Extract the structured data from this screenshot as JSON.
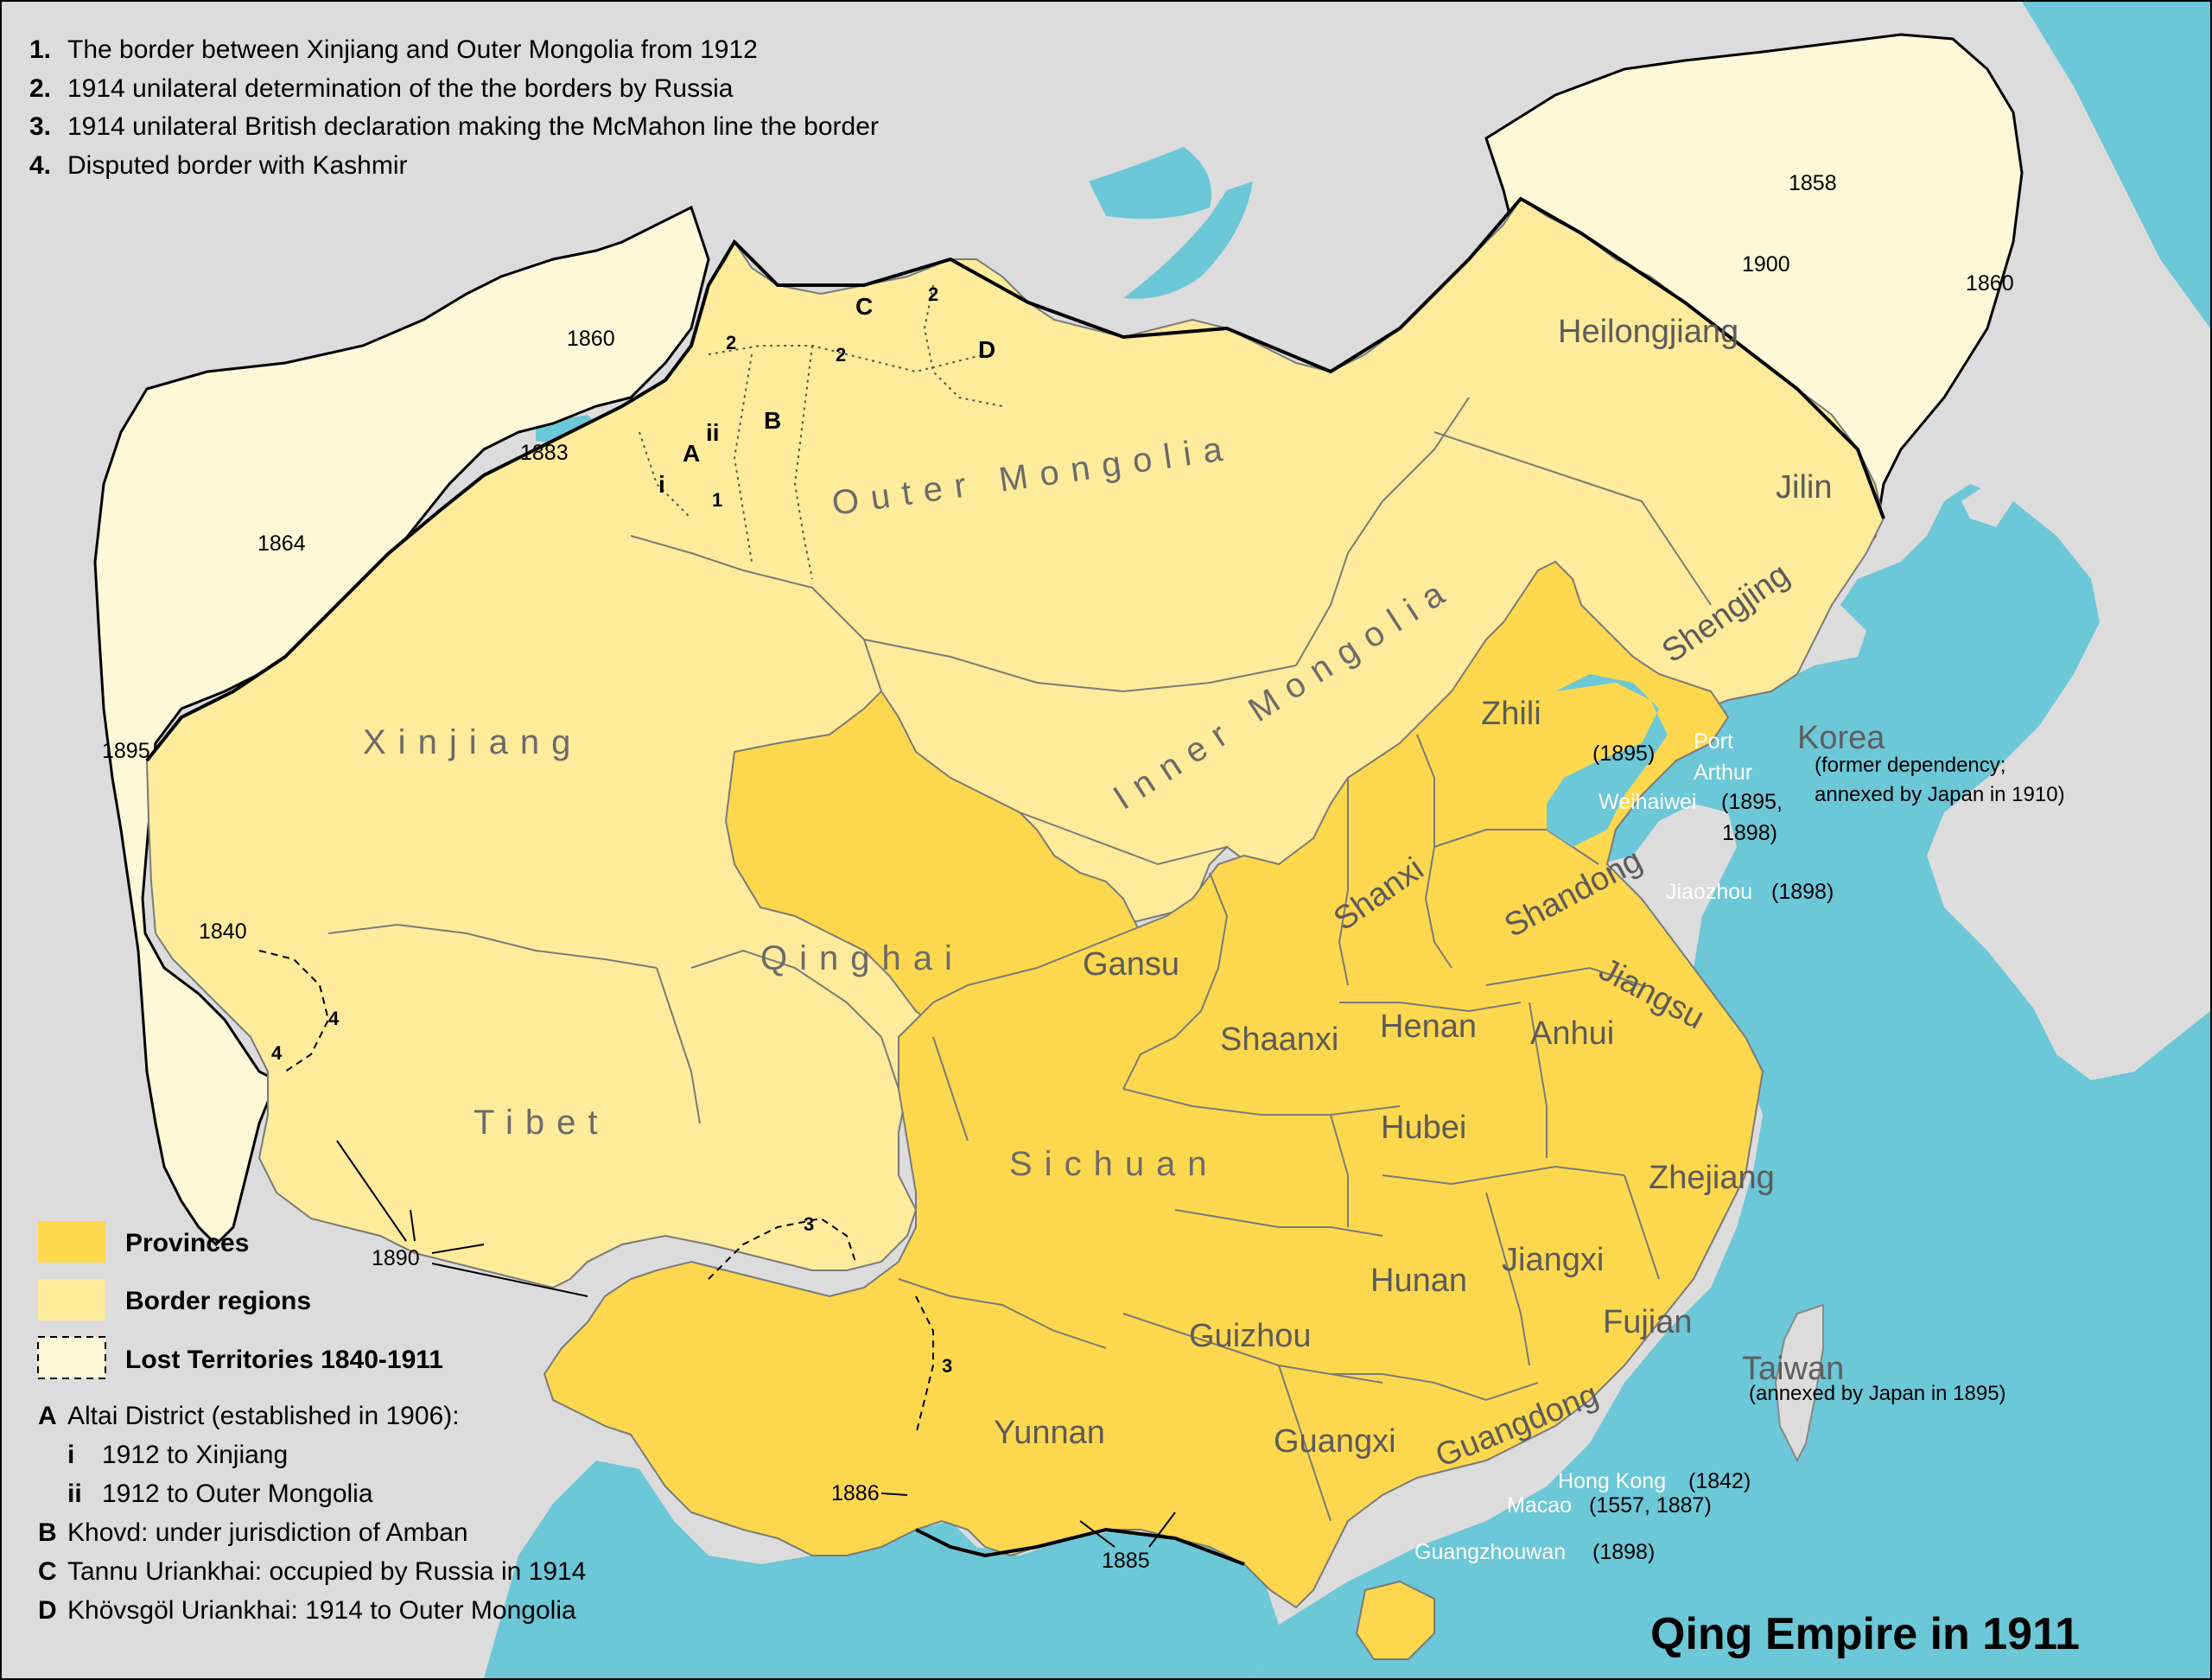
{
  "title": "Qing Empire in 1911",
  "colors": {
    "sea": "#6cc7d7",
    "foreign_land": "#dcdcdc",
    "provinces": "#fdd84e",
    "border_regions": "#feeb9b",
    "lost_territories": "#fef8d8"
  },
  "notes": [
    {
      "num": "1.",
      "text": "The border between Xinjiang and Outer Mongolia from 1912"
    },
    {
      "num": "2.",
      "text": "1914 unilateral determination of the the borders by Russia"
    },
    {
      "num": "3.",
      "text": "1914 unilateral British declaration making the McMahon line the border"
    },
    {
      "num": "4.",
      "text": "Disputed border with Kashmir"
    }
  ],
  "legend": {
    "provinces": "Provinces",
    "border_regions": "Border regions",
    "lost_territories": "Lost Territories 1840-1911"
  },
  "footnotes": [
    {
      "key": "A",
      "text": "Altai District (established in 1906):"
    },
    {
      "key": "i",
      "text": "1912 to Xinjiang"
    },
    {
      "key": "ii",
      "text": "1912 to Outer Mongolia"
    },
    {
      "key": "B",
      "text": "Khovd: under jurisdiction of Amban"
    },
    {
      "key": "C",
      "text": "Tannu Uriankhai: occupied by Russia in 1914"
    },
    {
      "key": "D",
      "text": "Khövsgöl Uriankhai: 1914 to Outer Mongolia"
    }
  ],
  "regions": {
    "xinjiang": "Xinjiang",
    "outer_mongolia": "Outer Mongolia",
    "inner_mongolia": "Inner Mongolia",
    "qinghai": "Qinghai",
    "tibet": "Tibet",
    "sichuan": "Sichuan"
  },
  "provinces": {
    "heilongjiang": "Heilongjiang",
    "jilin": "Jilin",
    "shengjing": "Shengjing",
    "zhili": "Zhili",
    "shanxi": "Shanxi",
    "shandong": "Shandong",
    "gansu": "Gansu",
    "shaanxi": "Shaanxi",
    "henan": "Henan",
    "anhui": "Anhui",
    "jiangsu": "Jiangsu",
    "hubei": "Hubei",
    "zhejiang": "Zhejiang",
    "hunan": "Hunan",
    "jiangxi": "Jiangxi",
    "fujian": "Fujian",
    "guizhou": "Guizhou",
    "yunnan": "Yunnan",
    "guangxi": "Guangxi",
    "guangdong": "Guangdong"
  },
  "years": {
    "y1858": "1858",
    "y1860_ne": "1860",
    "y1900": "1900",
    "y1860_nw": "1860",
    "y1883": "1883",
    "y1864": "1864",
    "y1895_w": "1895",
    "y1840": "1840",
    "y1890": "1890",
    "y1886": "1886",
    "y1885": "1885",
    "y1895_lease": "(1895)"
  },
  "ports": {
    "port_arthur": "Port Arthur",
    "port_arthur_1": "Port",
    "port_arthur_2": "Arthur",
    "weihaiwei": "Weihaiwei",
    "weihaiwei_date_1": "(1895,",
    "weihaiwei_date_2": "1898)",
    "jiaozhou": "Jiaozhou",
    "jiaozhou_date": "(1898)",
    "hong_kong": "Hong Kong",
    "hong_kong_date": "(1842)",
    "macao": "Macao",
    "macao_date": "(1557, 1887)",
    "guangzhouwan": "Guangzhouwan",
    "guangzhouwan_date": "(1898)"
  },
  "korea": {
    "name": "Korea",
    "sub1": "(former dependency;",
    "sub2": "annexed by Japan in 1910)"
  },
  "taiwan": {
    "name": "Taiwan",
    "sub": "(annexed by Japan in 1895)"
  },
  "markers": {
    "A": "A",
    "B": "B",
    "C": "C",
    "D": "D",
    "i": "i",
    "ii": "ii",
    "one": "1",
    "two_a": "2",
    "two_b": "2",
    "two_c": "2",
    "three_a": "3",
    "three_b": "3",
    "four_a": "4",
    "four_b": "4"
  }
}
